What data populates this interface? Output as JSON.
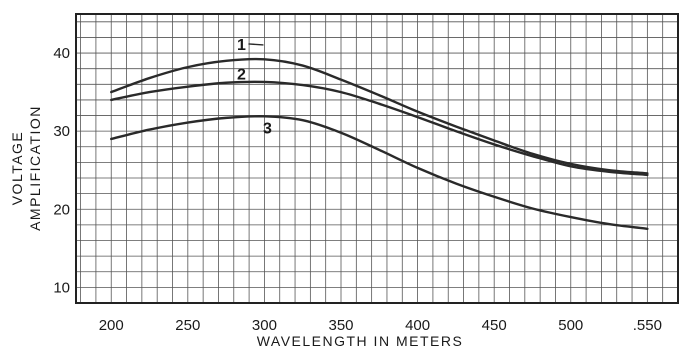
{
  "chart_data": {
    "type": "line",
    "title": "",
    "xlabel": "WAVELENGTH IN METERS",
    "ylabel_lines": [
      "VOLTAGE",
      "AMPLIFICATION"
    ],
    "xlim": [
      177,
      570
    ],
    "ylim": [
      8,
      45
    ],
    "x_ticks": [
      {
        "value": 200,
        "label": "200"
      },
      {
        "value": 250,
        "label": "250"
      },
      {
        "value": 300,
        "label": "300"
      },
      {
        "value": 350,
        "label": "350"
      },
      {
        "value": 400,
        "label": "400"
      },
      {
        "value": 450,
        "label": "450"
      },
      {
        "value": 500,
        "label": "500"
      },
      {
        "value": 550,
        "label": ".550"
      }
    ],
    "y_ticks": [
      {
        "value": 10,
        "label": "10"
      },
      {
        "value": 20,
        "label": "20"
      },
      {
        "value": 30,
        "label": "30"
      },
      {
        "value": 40,
        "label": "40"
      }
    ],
    "grid": true,
    "series": [
      {
        "name": "1",
        "label_at": [
          285,
          40.4
        ],
        "x": [
          200,
          225,
          250,
          275,
          300,
          325,
          350,
          375,
          400,
          425,
          450,
          475,
          500,
          525,
          550
        ],
        "values": [
          35.0,
          36.8,
          38.2,
          39.0,
          39.2,
          38.4,
          36.6,
          34.6,
          32.5,
          30.6,
          28.8,
          27.1,
          25.8,
          25.0,
          24.6
        ]
      },
      {
        "name": "2",
        "label_at": [
          285,
          36.6
        ],
        "x": [
          200,
          225,
          250,
          275,
          300,
          325,
          350,
          375,
          400,
          425,
          450,
          475,
          500,
          525,
          550
        ],
        "values": [
          34.0,
          35.0,
          35.7,
          36.2,
          36.3,
          35.9,
          35.0,
          33.5,
          31.8,
          30.0,
          28.3,
          26.8,
          25.5,
          24.8,
          24.4
        ]
      },
      {
        "name": "3",
        "label_at": [
          302,
          29.7
        ],
        "x": [
          200,
          225,
          250,
          275,
          300,
          325,
          350,
          375,
          400,
          425,
          450,
          475,
          500,
          525,
          550
        ],
        "values": [
          29.0,
          30.2,
          31.1,
          31.7,
          31.9,
          31.4,
          29.8,
          27.6,
          25.3,
          23.3,
          21.6,
          20.1,
          19.0,
          18.1,
          17.5
        ]
      }
    ]
  }
}
